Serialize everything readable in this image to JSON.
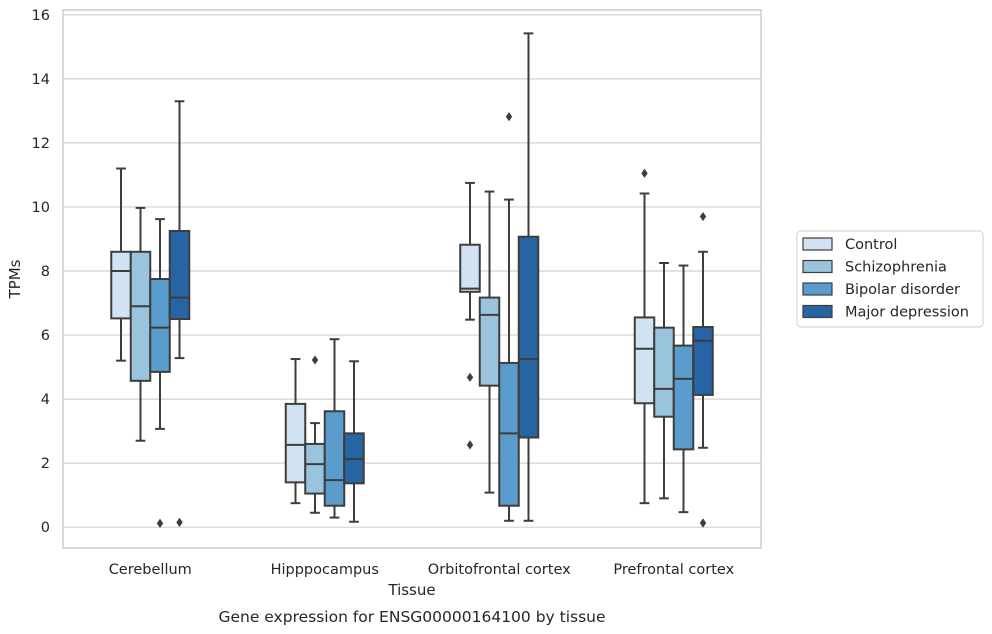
{
  "caption": "Gene expression for ENSG00000164100 by tissue",
  "legend_items": [
    {
      "label": "Control",
      "color": "#d1e2f2"
    },
    {
      "label": "Schizophrenia",
      "color": "#9ac4de"
    },
    {
      "label": "Bipolar disorder",
      "color": "#5a9ccb"
    },
    {
      "label": "Major depression",
      "color": "#2764a3"
    }
  ],
  "chart_data": {
    "type": "box",
    "xlabel": "Tissue",
    "ylabel": "TPMs",
    "ylim": [
      -0.65,
      16.15
    ],
    "yticks": [
      0,
      2,
      4,
      6,
      8,
      10,
      12,
      14,
      16
    ],
    "categories": [
      "Cerebellum",
      "Hipppocampus",
      "Orbitofrontal cortex",
      "Prefrontal cortex"
    ],
    "legend_position": "right",
    "grid": true,
    "series": [
      {
        "name": "Control",
        "color": "#d1e2f2",
        "boxes": [
          {
            "whislo": 5.2,
            "q1": 6.52,
            "med": 8.0,
            "q3": 8.6,
            "whishi": 11.2,
            "fliers": []
          },
          {
            "whislo": 0.75,
            "q1": 1.4,
            "med": 2.57,
            "q3": 3.85,
            "whishi": 5.25,
            "fliers": []
          },
          {
            "whislo": 6.48,
            "q1": 7.35,
            "med": 7.45,
            "q3": 8.82,
            "whishi": 10.75,
            "fliers": [
              4.68,
              2.57
            ]
          },
          {
            "whislo": 0.75,
            "q1": 3.87,
            "med": 5.57,
            "q3": 6.55,
            "whishi": 10.42,
            "fliers": [
              11.05
            ]
          }
        ]
      },
      {
        "name": "Schizophrenia",
        "color": "#9ac4de",
        "boxes": [
          {
            "whislo": 2.7,
            "q1": 4.57,
            "med": 6.9,
            "q3": 8.6,
            "whishi": 9.97,
            "fliers": []
          },
          {
            "whislo": 0.45,
            "q1": 1.05,
            "med": 1.97,
            "q3": 2.6,
            "whishi": 3.25,
            "fliers": [
              5.22
            ]
          },
          {
            "whislo": 1.08,
            "q1": 4.42,
            "med": 6.63,
            "q3": 7.17,
            "whishi": 10.48,
            "fliers": []
          },
          {
            "whislo": 0.9,
            "q1": 3.45,
            "med": 4.32,
            "q3": 6.23,
            "whishi": 8.25,
            "fliers": []
          }
        ]
      },
      {
        "name": "Bipolar disorder",
        "color": "#5a9ccb",
        "boxes": [
          {
            "whislo": 3.07,
            "q1": 4.85,
            "med": 6.23,
            "q3": 7.75,
            "whishi": 9.62,
            "fliers": [
              0.12
            ]
          },
          {
            "whislo": 0.3,
            "q1": 0.67,
            "med": 1.47,
            "q3": 3.62,
            "whishi": 5.87,
            "fliers": []
          },
          {
            "whislo": 0.2,
            "q1": 0.67,
            "med": 2.93,
            "q3": 5.13,
            "whishi": 10.23,
            "fliers": [
              12.82
            ]
          },
          {
            "whislo": 0.47,
            "q1": 2.43,
            "med": 4.63,
            "q3": 5.67,
            "whishi": 8.17,
            "fliers": []
          }
        ]
      },
      {
        "name": "Major depression",
        "color": "#2764a3",
        "boxes": [
          {
            "whislo": 5.28,
            "q1": 6.5,
            "med": 7.17,
            "q3": 9.25,
            "whishi": 13.3,
            "fliers": [
              0.15
            ]
          },
          {
            "whislo": 0.17,
            "q1": 1.37,
            "med": 2.13,
            "q3": 2.93,
            "whishi": 5.18,
            "fliers": []
          },
          {
            "whislo": 0.2,
            "q1": 2.8,
            "med": 5.25,
            "q3": 9.07,
            "whishi": 15.42,
            "fliers": []
          },
          {
            "whislo": 2.48,
            "q1": 4.13,
            "med": 5.82,
            "q3": 6.25,
            "whishi": 8.6,
            "fliers": [
              9.7,
              0.13
            ]
          }
        ]
      }
    ]
  }
}
